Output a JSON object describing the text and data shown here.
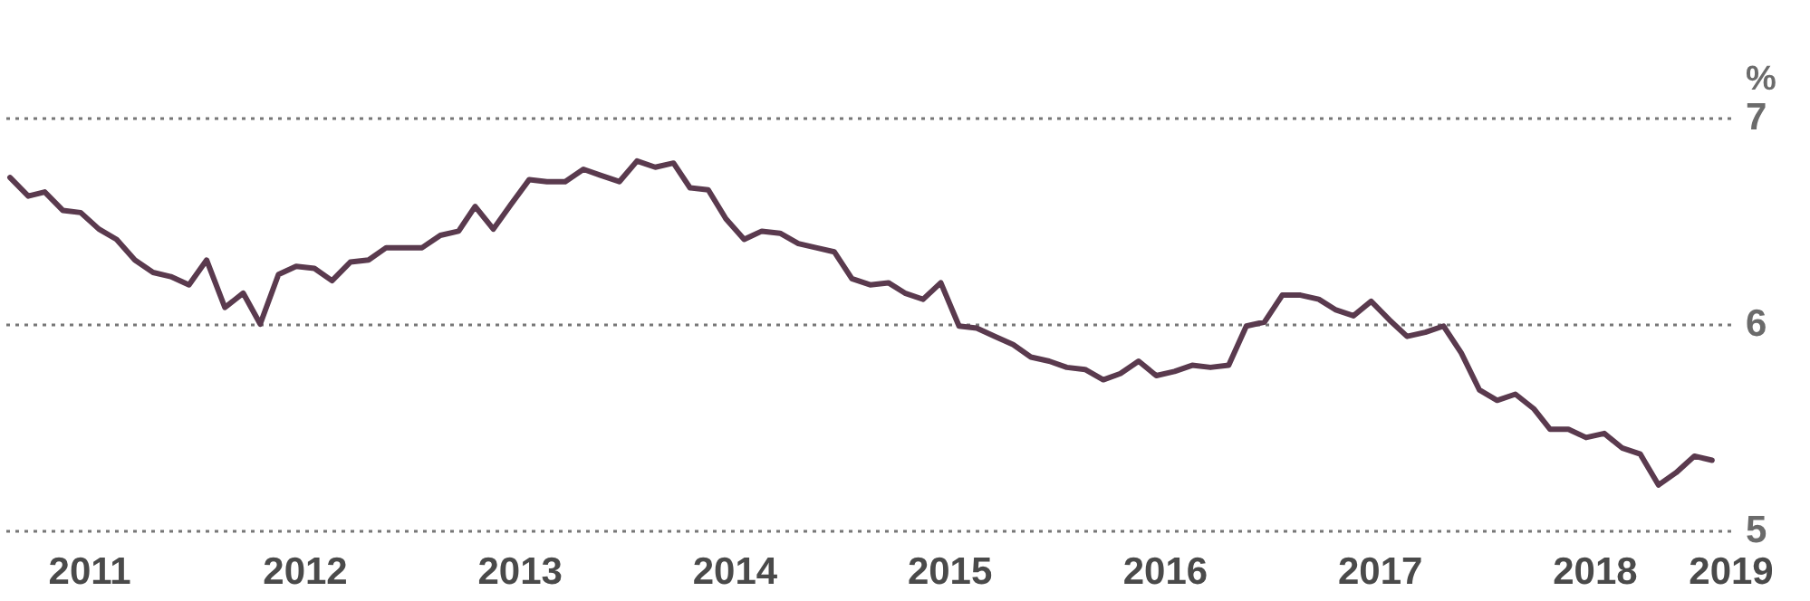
{
  "chart_data": {
    "type": "line",
    "ylabel": "%",
    "x": [
      "2011-01",
      "2011-02",
      "2011-03",
      "2011-04",
      "2011-05",
      "2011-06",
      "2011-07",
      "2011-08",
      "2011-09",
      "2011-10",
      "2011-11",
      "2011-12",
      "2012-01",
      "2012-02",
      "2012-03",
      "2012-04",
      "2012-05",
      "2012-06",
      "2012-07",
      "2012-08",
      "2012-09",
      "2012-10",
      "2012-11",
      "2012-12",
      "2013-01",
      "2013-02",
      "2013-03",
      "2013-04",
      "2013-05",
      "2013-06",
      "2013-07",
      "2013-08",
      "2013-09",
      "2013-10",
      "2013-11",
      "2013-12",
      "2014-01",
      "2014-02",
      "2014-03",
      "2014-04",
      "2014-05",
      "2014-06",
      "2014-07",
      "2014-08",
      "2014-09",
      "2014-10",
      "2014-11",
      "2014-12",
      "2015-01",
      "2015-02",
      "2015-03",
      "2015-04",
      "2015-05",
      "2015-06",
      "2015-07",
      "2015-08",
      "2015-09",
      "2015-10",
      "2015-11",
      "2015-12",
      "2016-01",
      "2016-02",
      "2016-03",
      "2016-04",
      "2016-05",
      "2016-06",
      "2016-07",
      "2016-08",
      "2016-09",
      "2016-10",
      "2016-11",
      "2016-12",
      "2017-01",
      "2017-02",
      "2017-03",
      "2017-04",
      "2017-05",
      "2017-06",
      "2017-07",
      "2017-08",
      "2017-09",
      "2017-10",
      "2017-11",
      "2017-12",
      "2018-01",
      "2018-02",
      "2018-03",
      "2018-04",
      "2018-05",
      "2018-06",
      "2018-07",
      "2018-08",
      "2018-09",
      "2018-10",
      "2018-11",
      "2018-12"
    ],
    "series": [
      {
        "color": "#5a3a4e",
        "values": [
          6.71,
          6.62,
          6.64,
          6.55,
          6.54,
          6.46,
          6.41,
          6.31,
          6.25,
          6.23,
          6.19,
          6.31,
          6.08,
          6.15,
          6.0,
          6.24,
          6.28,
          6.27,
          6.21,
          6.3,
          6.31,
          6.37,
          6.37,
          6.37,
          6.43,
          6.45,
          6.57,
          6.46,
          6.58,
          6.7,
          6.69,
          6.69,
          6.75,
          6.72,
          6.69,
          6.79,
          6.76,
          6.78,
          6.66,
          6.65,
          6.51,
          6.41,
          6.45,
          6.44,
          6.39,
          6.37,
          6.35,
          6.22,
          6.19,
          6.2,
          6.15,
          6.12,
          6.2,
          5.99,
          5.98,
          5.94,
          5.9,
          5.84,
          5.82,
          5.79,
          5.78,
          5.73,
          5.76,
          5.82,
          5.75,
          5.77,
          5.8,
          5.79,
          5.8,
          5.99,
          6.01,
          6.14,
          6.14,
          6.12,
          6.07,
          6.04,
          6.11,
          6.02,
          5.94,
          5.96,
          5.99,
          5.86,
          5.68,
          5.63,
          5.66,
          5.59,
          5.49,
          5.49,
          5.45,
          5.47,
          5.4,
          5.37,
          5.22,
          5.28,
          5.36,
          5.34
        ]
      }
    ],
    "xlim": [
      "2010-12-15",
      "2019-01-01"
    ],
    "xticks": [
      {
        "value": "2011-05-15",
        "label": "2011"
      },
      {
        "value": "2012-05-15",
        "label": "2012"
      },
      {
        "value": "2013-05-15",
        "label": "2013"
      },
      {
        "value": "2014-05-15",
        "label": "2014"
      },
      {
        "value": "2015-05-15",
        "label": "2015"
      },
      {
        "value": "2016-05-15",
        "label": "2016"
      },
      {
        "value": "2017-05-15",
        "label": "2017"
      },
      {
        "value": "2018-05-15",
        "label": "2018"
      },
      {
        "value": "2019-01-01",
        "label": "2019"
      }
    ],
    "ylim": [
      5,
      7
    ],
    "yticks": [
      5,
      6,
      7
    ],
    "grid": "y"
  }
}
